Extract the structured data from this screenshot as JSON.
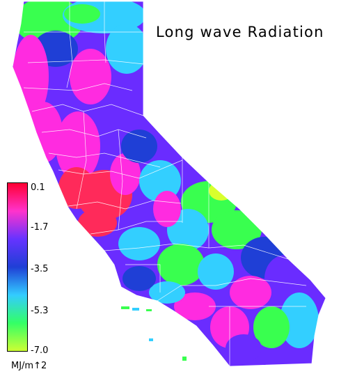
{
  "title": "Long wave Radiation",
  "legend": {
    "ticks": [
      "0.1",
      "-1.7",
      "-3.5",
      "-5.3",
      "-7.0"
    ],
    "unit": "MJ/m↑2",
    "colors": [
      "#ff0033",
      "#ff33cc",
      "#6633ff",
      "#1f3fd6",
      "#33ccff",
      "#33ff66",
      "#ccff33"
    ]
  },
  "colors": {
    "high": "#ff2a5a",
    "mid_high": "#ff2be0",
    "mid": "#6a2cff",
    "low_mid": "#33cfff",
    "low": "#39ff4f",
    "lowest": "#d8ff2d",
    "boundary": "#ffffff"
  }
}
